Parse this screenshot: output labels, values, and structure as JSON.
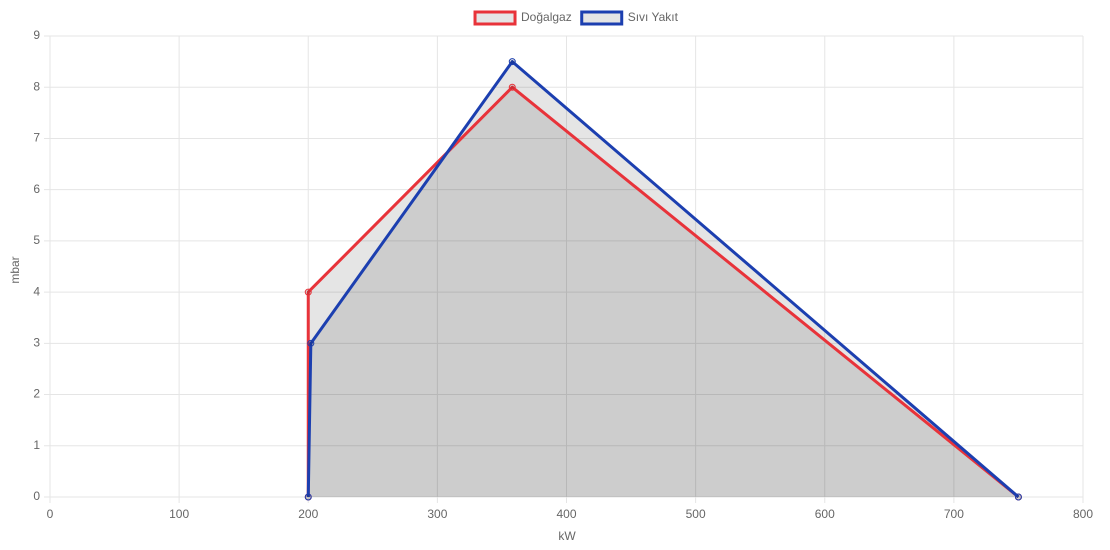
{
  "chart_data": {
    "type": "line",
    "x_label": "kW",
    "y_label": "mbar",
    "series": [
      {
        "name": "Doğalgaz",
        "color": "#e8333a",
        "fill_color": "rgba(0,0,0,0.1)",
        "x": [
          200,
          200,
          358,
          750
        ],
        "values": [
          0,
          4,
          8,
          0
        ]
      },
      {
        "name": "Sıvı Yakıt",
        "color": "#1c3fb0",
        "fill_color": "rgba(0,0,0,0.1)",
        "x": [
          200,
          202,
          358,
          750
        ],
        "values": [
          0,
          3,
          8.5,
          0
        ]
      }
    ],
    "xlim": [
      0,
      800
    ],
    "xticks": [
      0,
      100,
      200,
      300,
      400,
      500,
      600,
      700,
      800
    ],
    "ylim": [
      0,
      9
    ],
    "yticks": [
      0,
      1,
      2,
      3,
      4,
      5,
      6,
      7,
      8,
      9
    ],
    "grid": true,
    "legend": "top"
  }
}
